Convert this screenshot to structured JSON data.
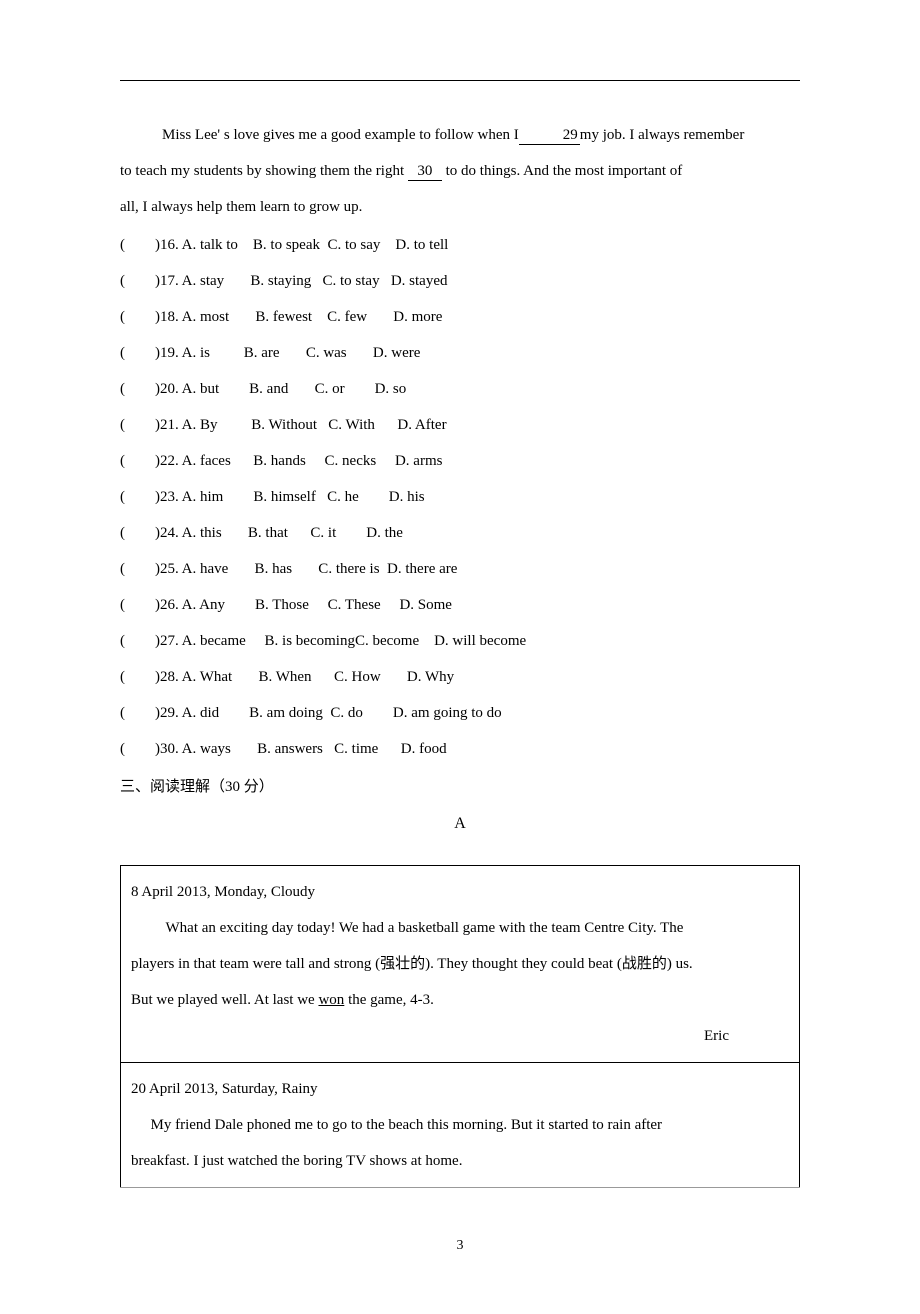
{
  "intro": {
    "line1_pre": "Miss Lee' s love gives me a good example to follow when I",
    "blank1": "  29  ",
    "line1_post": "my job. I always remember",
    "line2_pre": "to teach my students by showing them the right ",
    "blank2": "  30  ",
    "line2_post": " to do things. And the most important of",
    "line3": "all, I always help them learn to grow up."
  },
  "questions": [
    {
      "num": "16",
      "a": "talk to",
      "b": "to speak",
      "c": "to say",
      "d": "to tell"
    },
    {
      "num": "17",
      "a": "stay",
      "b": "staying",
      "c": "to stay",
      "d": "stayed"
    },
    {
      "num": "18",
      "a": "most",
      "b": "fewest",
      "c": "few",
      "d": "more"
    },
    {
      "num": "19",
      "a": "is",
      "b": "are",
      "c": "was",
      "d": "were"
    },
    {
      "num": "20",
      "a": "but",
      "b": "and",
      "c": "or",
      "d": "so"
    },
    {
      "num": "21",
      "a": "By",
      "b": "Without",
      "c": "With",
      "d": "After"
    },
    {
      "num": "22",
      "a": "faces",
      "b": "hands",
      "c": "necks",
      "d": "arms"
    },
    {
      "num": "23",
      "a": "him",
      "b": "himself",
      "c": "he",
      "d": "his"
    },
    {
      "num": "24",
      "a": "this",
      "b": "that",
      "c": "it",
      "d": "the"
    },
    {
      "num": "25",
      "a": "have",
      "b": "has",
      "c": "there is",
      "d": "there are"
    },
    {
      "num": "26",
      "a": "Any",
      "b": "Those",
      "c": "These",
      "d": "Some"
    },
    {
      "num": "27",
      "a": "became",
      "b": "is becoming",
      "c": "become",
      "d": "will become"
    },
    {
      "num": "28",
      "a": "What",
      "b": "When",
      "c": "How",
      "d": "Why"
    },
    {
      "num": "29",
      "a": "did",
      "b": "am doing",
      "c": "do",
      "d": "am going to do"
    },
    {
      "num": "30",
      "a": "ways",
      "b": "answers",
      "c": "time",
      "d": "food"
    }
  ],
  "col_positions": {
    "paren": 0,
    "num": 9,
    "a": 13,
    "b": 28,
    "c": 41,
    "d": 54
  },
  "section3": "三、阅读理解（30 分）",
  "passage_label": "A",
  "diary": {
    "entry1": {
      "date": "8 April 2013, Monday, Cloudy",
      "p1": "What an exciting day today! We had a basketball game with the team Centre City. The",
      "p2": "players in that team were tall and strong (强壮的). They thought they could beat (战胜的) us.",
      "p3_pre": "But we played well. At last we ",
      "p3_u": "won",
      "p3_post": " the game, 4-3.",
      "sig": "Eric"
    },
    "entry2": {
      "date": "20 April 2013, Saturday, Rainy",
      "p1": "My friend Dale phoned me to go to the beach this morning. But it started to rain after",
      "p2": "breakfast. I just watched the boring TV shows at home."
    }
  },
  "page_number": "3"
}
